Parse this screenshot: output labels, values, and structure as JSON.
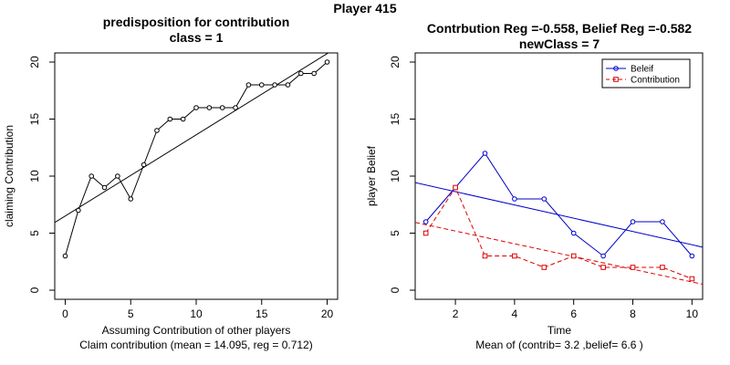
{
  "page": {
    "main_title": "Player 415"
  },
  "chart_data": [
    {
      "type": "scatter",
      "title": "predisposition for contribution",
      "subtitle": "class = 1",
      "xlabel": "Assuming Contribution of other players",
      "xlabel2": "Claim contribution (mean = 14.095, reg = 0.712)",
      "ylabel": "claiming Contribution",
      "xlim": [
        -0.8,
        20.8
      ],
      "ylim": [
        -0.8,
        20.8
      ],
      "xticks": [
        0,
        5,
        10,
        15,
        20
      ],
      "yticks": [
        0,
        5,
        10,
        15,
        20
      ],
      "grid": false,
      "series": [
        {
          "x": [
            0,
            1,
            2,
            3,
            4,
            5,
            6,
            7,
            8,
            9,
            10,
            11,
            12,
            13,
            14,
            15,
            16,
            17,
            18,
            19,
            20
          ],
          "y": [
            3,
            7,
            10,
            9,
            10,
            8,
            11,
            14,
            15,
            15,
            16,
            16,
            16,
            16,
            18,
            18,
            18,
            18,
            19,
            19,
            20
          ],
          "style": "line+points",
          "color": "#000000"
        }
      ],
      "regression": {
        "intercept": 6.5,
        "slope": 0.712,
        "color": "#000000"
      }
    },
    {
      "type": "line",
      "title": "Contrbution Reg =-0.558, Belief Reg =-0.582",
      "subtitle": "newClass = 7",
      "xlabel": "Time",
      "xlabel2": "Mean of (contrib= 3.2  ,belief= 6.6 )",
      "ylabel": "player Belief",
      "xlim": [
        0.64,
        10.36
      ],
      "ylim": [
        -0.8,
        20.8
      ],
      "xticks": [
        2,
        4,
        6,
        8,
        10
      ],
      "yticks": [
        0,
        5,
        10,
        15,
        20
      ],
      "grid": false,
      "legend_position": "top-right",
      "x": [
        1,
        2,
        3,
        4,
        5,
        6,
        7,
        8,
        9,
        10
      ],
      "series": [
        {
          "name": "Beleif",
          "values": [
            6,
            9,
            12,
            8,
            8,
            5,
            3,
            6,
            6,
            3
          ],
          "color": "#0000CC",
          "marker": "circle",
          "dash": "solid",
          "regression": {
            "intercept": 9.8,
            "slope": -0.582
          }
        },
        {
          "name": "Contribution",
          "values": [
            5,
            9,
            3,
            3,
            2,
            3,
            2,
            2,
            2,
            1
          ],
          "color": "#DD0000",
          "marker": "square",
          "dash": "dashed",
          "regression": {
            "intercept": 6.3,
            "slope": -0.558
          }
        }
      ]
    }
  ]
}
